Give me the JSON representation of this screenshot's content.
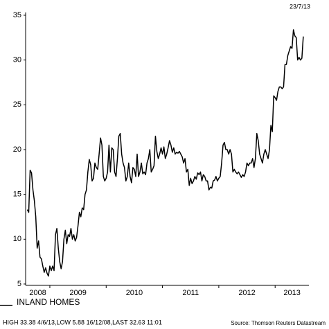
{
  "chart_data": {
    "type": "line",
    "date": "23/7/13",
    "series": [
      {
        "name": "INLAND HOMES",
        "color": "#000000",
        "values": [
          13.3,
          13,
          17.7,
          17.4,
          15.5,
          14.3,
          12.5,
          9,
          9.8,
          8,
          7.8,
          7,
          6.3,
          6.8,
          6.2,
          5.88,
          7,
          6.5,
          7,
          6.5,
          10.5,
          11.2,
          9,
          7.5,
          6.7,
          7.5,
          10,
          11,
          9.5,
          10.5,
          10.3,
          11.2,
          10,
          10.5,
          9.8,
          10.2,
          11.5,
          13,
          12.5,
          13.5,
          13.3,
          15,
          15.5,
          17.5,
          18.9,
          18.3,
          16.5,
          16.8,
          18.5,
          18,
          17.8,
          19.5,
          21.3,
          20.5,
          17,
          16.5,
          16.8,
          17.5,
          20.5,
          17.5,
          20.2,
          20,
          17.5,
          17,
          19,
          21.5,
          21.8,
          19.5,
          18.5,
          18,
          16.5,
          17,
          18.5,
          17,
          16.3,
          18,
          17.8,
          17,
          19.5,
          17,
          17.5,
          18.5,
          17.3,
          17.5,
          17.2,
          18.5,
          19,
          20,
          17.5,
          17.8,
          18.2,
          21.5,
          19.8,
          19,
          19.5,
          20.2,
          19.5,
          20.3,
          19,
          19.5,
          20.2,
          21,
          20.5,
          19.7,
          20.2,
          19.5,
          19.7,
          19.6,
          19.8,
          19.5,
          19.2,
          18.5,
          19,
          17.5,
          17.8,
          16,
          16.8,
          16.2,
          16.5,
          17,
          16.7,
          17.4,
          17.2,
          17.5,
          16.5,
          17.2,
          17,
          16.5,
          16.5,
          15.5,
          15.8,
          15.7,
          16.5,
          16.6,
          17,
          16.5,
          16.8,
          17,
          18.5,
          20.5,
          20.8,
          20,
          20,
          19.5,
          20,
          19.5,
          17.5,
          17.8,
          17.5,
          17.3,
          17.5,
          17.2,
          16.9,
          17.2,
          17,
          17.5,
          18.5,
          18.2,
          18.5,
          18.5,
          19,
          18,
          19,
          21.8,
          21,
          19.5,
          19,
          18.5,
          19.5,
          20,
          19.5,
          19,
          20,
          22.7,
          22,
          26,
          25.8,
          25.5,
          26.5,
          27,
          27,
          26.8,
          27,
          29.5,
          29.5,
          30.5,
          31,
          31.5,
          31.3,
          33.38,
          32.7,
          32.5,
          30,
          30.3,
          30,
          30.2,
          32.63
        ]
      }
    ],
    "x": [
      2008.6,
      2008.625,
      2008.65,
      2008.675,
      2008.7,
      2008.725,
      2008.75,
      2008.775,
      2008.8,
      2008.825,
      2008.85,
      2008.875,
      2008.9,
      2008.925,
      2008.95,
      2008.975,
      2009.0,
      2009.025,
      2009.05,
      2009.075,
      2009.1,
      2009.125,
      2009.15,
      2009.175,
      2009.2,
      2009.225,
      2009.25,
      2009.275,
      2009.3,
      2009.325,
      2009.35,
      2009.375,
      2009.4,
      2009.425,
      2009.45,
      2009.475,
      2009.5,
      2009.525,
      2009.55,
      2009.575,
      2009.6,
      2009.625,
      2009.65,
      2009.675,
      2009.7,
      2009.725,
      2009.75,
      2009.775,
      2009.8,
      2009.825,
      2009.85,
      2009.875,
      2009.9,
      2009.925,
      2009.95,
      2009.975,
      2010.0,
      2010.025,
      2010.05,
      2010.075,
      2010.1,
      2010.125,
      2010.15,
      2010.175,
      2010.2,
      2010.225,
      2010.25,
      2010.275,
      2010.3,
      2010.325,
      2010.35,
      2010.375,
      2010.4,
      2010.425,
      2010.45,
      2010.475,
      2010.5,
      2010.525,
      2010.55,
      2010.575,
      2010.6,
      2010.625,
      2010.65,
      2010.675,
      2010.7,
      2010.725,
      2010.75,
      2010.775,
      2010.8,
      2010.825,
      2010.85,
      2010.875,
      2010.9,
      2010.925,
      2010.95,
      2010.975,
      2011.0,
      2011.025,
      2011.05,
      2011.075,
      2011.1,
      2011.125,
      2011.15,
      2011.175,
      2011.2,
      2011.225,
      2011.25,
      2011.275,
      2011.3,
      2011.325,
      2011.35,
      2011.375,
      2011.4,
      2011.425,
      2011.45,
      2011.475,
      2011.5,
      2011.525,
      2011.55,
      2011.575,
      2011.6,
      2011.625,
      2011.65,
      2011.675,
      2011.7,
      2011.725,
      2011.75,
      2011.775,
      2011.8,
      2011.825,
      2011.85,
      2011.875,
      2011.9,
      2011.925,
      2011.95,
      2011.975,
      2012.0,
      2012.025,
      2012.05,
      2012.075,
      2012.1,
      2012.125,
      2012.15,
      2012.175,
      2012.2,
      2012.225,
      2012.25,
      2012.275,
      2012.3,
      2012.325,
      2012.35,
      2012.375,
      2012.4,
      2012.425,
      2012.45,
      2012.475,
      2012.5,
      2012.525,
      2012.55,
      2012.575,
      2012.6,
      2012.625,
      2012.65,
      2012.675,
      2012.7,
      2012.725,
      2012.75,
      2012.775,
      2012.8,
      2012.825,
      2012.85,
      2012.875,
      2012.9,
      2012.925,
      2012.95,
      2012.975,
      2013.0,
      2013.025,
      2013.05,
      2013.075,
      2013.1,
      2013.125,
      2013.15,
      2013.175,
      2013.2,
      2013.225,
      2013.25,
      2013.275,
      2013.3,
      2013.325,
      2013.35,
      2013.375,
      2013.4,
      2013.425,
      2013.45,
      2013.475,
      2013.5
    ],
    "xlim": [
      2008.57,
      2013.6
    ],
    "years": [
      "2008",
      "2009",
      "2010",
      "2011",
      "2012",
      "2013"
    ],
    "ylim": [
      5,
      35
    ],
    "yticks": [
      5,
      10,
      15,
      20,
      25,
      30,
      35
    ],
    "footer": "HIGH 33.38 4/6/13,LOW 5.88 16/12/08,LAST 32.63 11:01",
    "source": "Source: Thomson Reuters Datastream"
  }
}
